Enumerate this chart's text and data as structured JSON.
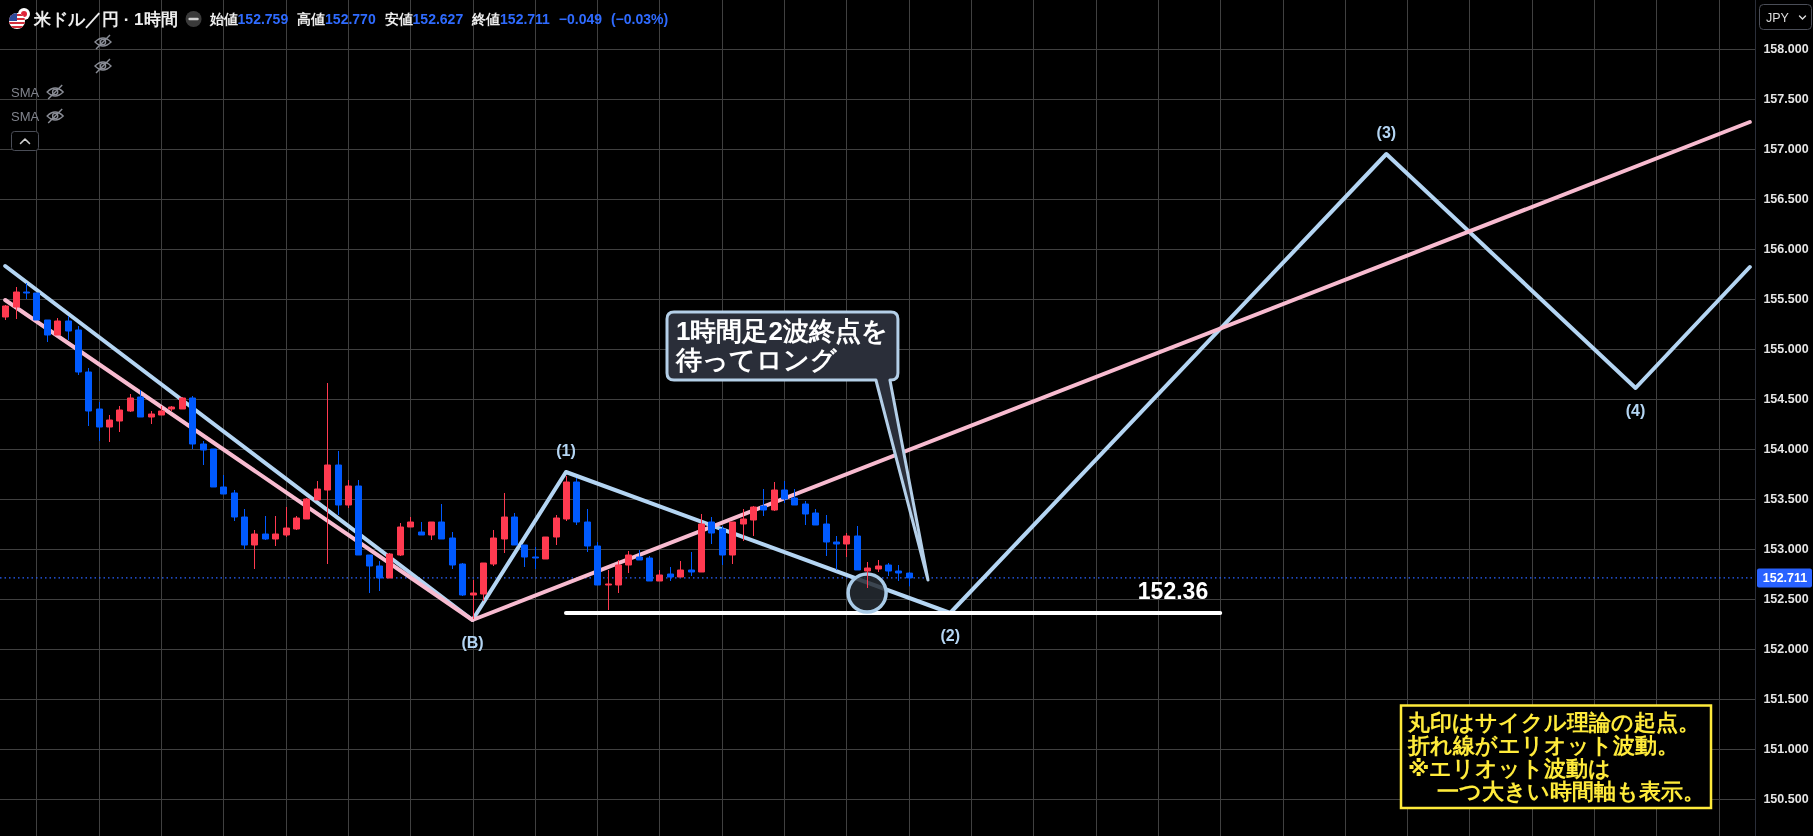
{
  "chart_data": {
    "type": "candlestick",
    "title": "米ドル／円 · 1時間",
    "subtitle": "始値152.759 高値152.770 安値152.627 終値152.711 −0.049 (−0.03%)",
    "categories": [
      null,
      null,
      null,
      null,
      null,
      null,
      null,
      null,
      null,
      null,
      null,
      null,
      null,
      null,
      null,
      null,
      null,
      null,
      null,
      null,
      null,
      null,
      null,
      null,
      null,
      null,
      null,
      null,
      null,
      null,
      null,
      null,
      null,
      null,
      null,
      null,
      null,
      null,
      null,
      null,
      null,
      null,
      null,
      null,
      null,
      null,
      null,
      null,
      null,
      null,
      null,
      null,
      null,
      null,
      null,
      null,
      null,
      null,
      null,
      null,
      null,
      null,
      null,
      null,
      null,
      null,
      null,
      null,
      null,
      null,
      null,
      null,
      null,
      null,
      null,
      null,
      null,
      null,
      null,
      null,
      null,
      null,
      null,
      null,
      null,
      null,
      null,
      null,
      null,
      null,
      null,
      null,
      null,
      null,
      null,
      null,
      null,
      null,
      null,
      null,
      null,
      null,
      null,
      null,
      null,
      null,
      null,
      null,
      null,
      null,
      null,
      null,
      null,
      null,
      null,
      null,
      null,
      null,
      null,
      null,
      null,
      null,
      null,
      null,
      null,
      null,
      null,
      null,
      null,
      null,
      null,
      null,
      null,
      null,
      null,
      null,
      null,
      null,
      null,
      null,
      null,
      null,
      null,
      null,
      null,
      null,
      null,
      null,
      null,
      null,
      null,
      null,
      null,
      null,
      null,
      null,
      null,
      null,
      null,
      null,
      null,
      null,
      null,
      null,
      null,
      null,
      null,
      null,
      null
    ],
    "ohlc": [
      [
        155.32,
        155.44,
        155.29,
        155.43
      ],
      [
        155.42,
        155.62,
        155.3,
        155.57
      ],
      [
        155.57,
        155.66,
        155.5,
        155.56
      ],
      [
        155.56,
        155.56,
        155.29,
        155.29
      ],
      [
        155.29,
        155.29,
        155.07,
        155.14
      ],
      [
        155.14,
        155.31,
        155.14,
        155.28
      ],
      [
        155.28,
        155.33,
        155.09,
        155.18
      ],
      [
        155.19,
        155.23,
        154.74,
        154.77
      ],
      [
        154.77,
        154.81,
        154.23,
        154.38
      ],
      [
        154.4,
        154.47,
        154.08,
        154.22
      ],
      [
        154.22,
        154.34,
        154.07,
        154.29
      ],
      [
        154.28,
        154.43,
        154.17,
        154.39
      ],
      [
        154.38,
        154.55,
        154.37,
        154.51
      ],
      [
        154.52,
        154.59,
        154.32,
        154.32
      ],
      [
        154.32,
        154.38,
        154.25,
        154.35
      ],
      [
        154.34,
        154.43,
        154.34,
        154.38
      ],
      [
        154.4,
        154.43,
        154.38,
        154.42
      ],
      [
        154.4,
        154.52,
        154.4,
        154.51
      ],
      [
        154.51,
        154.53,
        154.0,
        154.05
      ],
      [
        154.05,
        154.08,
        153.84,
        153.99
      ],
      [
        154.0,
        154.0,
        153.62,
        153.62
      ],
      [
        153.62,
        153.74,
        153.55,
        153.55
      ],
      [
        153.56,
        153.59,
        153.28,
        153.32
      ],
      [
        153.32,
        153.4,
        153.0,
        153.04
      ],
      [
        153.04,
        153.19,
        152.8,
        153.15
      ],
      [
        153.15,
        153.33,
        153.09,
        153.1
      ],
      [
        153.1,
        153.33,
        153.03,
        153.15
      ],
      [
        153.14,
        153.42,
        153.12,
        153.21
      ],
      [
        153.2,
        153.33,
        153.19,
        153.31
      ],
      [
        153.3,
        153.51,
        153.3,
        153.5
      ],
      [
        153.49,
        153.68,
        153.49,
        153.6
      ],
      [
        153.59,
        154.66,
        152.85,
        153.84
      ],
      [
        153.84,
        153.98,
        153.34,
        153.44
      ],
      [
        153.44,
        153.69,
        153.41,
        153.63
      ],
      [
        153.63,
        153.69,
        152.94,
        152.94
      ],
      [
        152.94,
        152.94,
        152.56,
        152.83
      ],
      [
        152.83,
        152.88,
        152.58,
        152.71
      ],
      [
        152.71,
        152.96,
        152.71,
        152.95
      ],
      [
        152.94,
        153.26,
        152.93,
        153.22
      ],
      [
        153.22,
        153.32,
        153.22,
        153.27
      ],
      [
        153.17,
        153.27,
        153.14,
        153.14
      ],
      [
        153.14,
        153.27,
        153.09,
        153.27
      ],
      [
        153.27,
        153.45,
        153.1,
        153.1
      ],
      [
        153.11,
        153.17,
        152.8,
        152.84
      ],
      [
        152.85,
        152.86,
        152.53,
        152.54
      ],
      [
        152.54,
        152.69,
        152.3,
        152.56
      ],
      [
        152.55,
        152.86,
        152.48,
        152.86
      ],
      [
        152.85,
        153.19,
        152.83,
        153.11
      ],
      [
        153.1,
        153.56,
        152.96,
        153.32
      ],
      [
        153.32,
        153.36,
        153.04,
        153.04
      ],
      [
        153.04,
        153.04,
        152.82,
        152.92
      ],
      [
        152.92,
        153.02,
        152.8,
        152.91
      ],
      [
        152.9,
        153.12,
        152.9,
        153.12
      ],
      [
        153.12,
        153.34,
        153.04,
        153.31
      ],
      [
        153.3,
        153.73,
        153.28,
        153.67
      ],
      [
        153.67,
        153.71,
        153.24,
        153.27
      ],
      [
        153.27,
        153.4,
        152.97,
        153.03
      ],
      [
        153.03,
        153.07,
        152.64,
        152.64
      ],
      [
        152.64,
        152.79,
        152.39,
        152.65
      ],
      [
        152.64,
        152.89,
        152.56,
        152.84
      ],
      [
        152.84,
        152.98,
        152.76,
        152.94
      ],
      [
        152.92,
        152.99,
        152.89,
        152.89
      ],
      [
        152.91,
        152.93,
        152.68,
        152.68
      ],
      [
        152.68,
        152.79,
        152.68,
        152.74
      ],
      [
        152.75,
        152.82,
        152.68,
        152.72
      ],
      [
        152.72,
        152.88,
        152.72,
        152.79
      ],
      [
        152.79,
        152.97,
        152.73,
        152.77
      ],
      [
        152.77,
        153.35,
        152.77,
        153.25
      ],
      [
        153.27,
        153.32,
        153.05,
        153.16
      ],
      [
        153.2,
        153.23,
        152.84,
        152.94
      ],
      [
        152.94,
        153.27,
        152.85,
        153.27
      ],
      [
        153.25,
        153.4,
        153.08,
        153.3
      ],
      [
        153.29,
        153.43,
        153.13,
        153.42
      ],
      [
        153.43,
        153.6,
        153.33,
        153.39
      ],
      [
        153.39,
        153.67,
        153.38,
        153.59
      ],
      [
        153.59,
        153.68,
        153.46,
        153.5
      ],
      [
        153.51,
        153.6,
        153.44,
        153.44
      ],
      [
        153.45,
        153.48,
        153.24,
        153.35
      ],
      [
        153.36,
        153.4,
        153.24,
        153.24
      ],
      [
        153.25,
        153.34,
        152.93,
        153.07
      ],
      [
        153.07,
        153.13,
        152.79,
        153.05
      ],
      [
        153.05,
        153.16,
        152.92,
        153.13
      ],
      [
        153.13,
        153.23,
        152.79,
        152.79
      ],
      [
        152.78,
        152.87,
        152.61,
        152.81
      ],
      [
        152.8,
        152.89,
        152.77,
        152.83
      ],
      [
        152.84,
        152.86,
        152.73,
        152.78
      ],
      [
        152.78,
        152.84,
        152.68,
        152.76
      ],
      [
        152.759,
        152.77,
        152.627,
        152.711
      ],
      null,
      null,
      null,
      null,
      null,
      null,
      null,
      null,
      null,
      null,
      null,
      null,
      null,
      null,
      null,
      null,
      null,
      null,
      null,
      null,
      null,
      null,
      null,
      null,
      null,
      null,
      null,
      null,
      null,
      null,
      null,
      null,
      null,
      null,
      null,
      null,
      null,
      null,
      null,
      null,
      null,
      null,
      null,
      null,
      null,
      null,
      null,
      null,
      null,
      null,
      null,
      null,
      null,
      null,
      null,
      null,
      null,
      null,
      null,
      null,
      null,
      null,
      null,
      null,
      null,
      null,
      null,
      null,
      null,
      null,
      null,
      null,
      null,
      null,
      null,
      null,
      null,
      null,
      null,
      null,
      null
    ],
    "colors": [
      "#ff3a50",
      "#ff3a50",
      "#005aff",
      "#005aff",
      "#005aff",
      "#ff3a50",
      "#005aff",
      "#005aff",
      "#005aff",
      "#005aff",
      "#ff3a50",
      "#ff3a50",
      "#ff3a50",
      "#005aff",
      "#ff3a50",
      "#ff3a50",
      "#ff3a50",
      "#ff3a50",
      "#005aff",
      "#005aff",
      "#005aff",
      "#005aff",
      "#005aff",
      "#005aff",
      "#ff3a50",
      "#005aff",
      "#ff3a50",
      "#ff3a50",
      "#ff3a50",
      "#ff3a50",
      "#ff3a50",
      "#ff3a50",
      "#005aff",
      "#ff3a50",
      "#005aff",
      "#005aff",
      "#005aff",
      "#ff3a50",
      "#ff3a50",
      "#ff3a50",
      "#005aff",
      "#ff3a50",
      "#005aff",
      "#005aff",
      "#005aff",
      "#ff3a50",
      "#ff3a50",
      "#ff3a50",
      "#ff3a50",
      "#005aff",
      "#005aff",
      "#005aff",
      "#ff3a50",
      "#ff3a50",
      "#ff3a50",
      "#005aff",
      "#005aff",
      "#005aff",
      "#ff3a50",
      "#ff3a50",
      "#ff3a50",
      "#005aff",
      "#005aff",
      "#ff3a50",
      "#005aff",
      "#ff3a50",
      "#005aff",
      "#ff3a50",
      "#005aff",
      "#005aff",
      "#ff3a50",
      "#ff3a50",
      "#ff3a50",
      "#005aff",
      "#ff3a50",
      "#005aff",
      "#005aff",
      "#005aff",
      "#005aff",
      "#005aff",
      "#005aff",
      "#ff3a50",
      "#005aff",
      "#ff3a50",
      "#ff3a50",
      "#005aff",
      "#005aff",
      "#005aff",
      null,
      null,
      null,
      null,
      null,
      null,
      null,
      null,
      null,
      null,
      null,
      null,
      null,
      null,
      null,
      null,
      null,
      null,
      null,
      null,
      null,
      null,
      null,
      null,
      null,
      null,
      null,
      null,
      null,
      null,
      null,
      null,
      null,
      null,
      null,
      null,
      null,
      null,
      null,
      null,
      null,
      null,
      null,
      null,
      null,
      null,
      null,
      null,
      null,
      null,
      null,
      null,
      null,
      null,
      null,
      null,
      null,
      null,
      null,
      null,
      null,
      null,
      null,
      null,
      null,
      null,
      null,
      null,
      null,
      null,
      null,
      null,
      null,
      null,
      null,
      null,
      null,
      null,
      null,
      null,
      null
    ],
    "series": [
      {
        "type": "line",
        "color": "#b4d5f3",
        "values": [
          155.83,
          null,
          null,
          null,
          null,
          null,
          null,
          null,
          null,
          null,
          null,
          null,
          null,
          null,
          null,
          null,
          null,
          null,
          null,
          null,
          null,
          null,
          null,
          null,
          null,
          null,
          null,
          null,
          null,
          null,
          null,
          null,
          null,
          null,
          null,
          null,
          null,
          null,
          null,
          null,
          null,
          null,
          null,
          null,
          null,
          152.29,
          null,
          null,
          null,
          null,
          null,
          null,
          null,
          null,
          153.77,
          null,
          null,
          null,
          null,
          null,
          null,
          null,
          null,
          null,
          null,
          null,
          null,
          null,
          null,
          null,
          null,
          null,
          null,
          null,
          null,
          null,
          null,
          null,
          null,
          null,
          null,
          null,
          null,
          null,
          null,
          null,
          null,
          null,
          null,
          null,
          null,
          152.36,
          null,
          null,
          null,
          null,
          null,
          null,
          null,
          null,
          null,
          null,
          null,
          null,
          null,
          null,
          null,
          null,
          null,
          null,
          null,
          null,
          null,
          null,
          null,
          null,
          null,
          null,
          null,
          null,
          null,
          null,
          null,
          null,
          null,
          null,
          null,
          null,
          null,
          null,
          null,
          null,
          null,
          156.95,
          null,
          null,
          null,
          null,
          null,
          null,
          null,
          null,
          null,
          null,
          null,
          null,
          null,
          null,
          null,
          null,
          null,
          null,
          null,
          null,
          null,
          null,
          null,
          154.61,
          null,
          null,
          null,
          null,
          null,
          null,
          null,
          null,
          null,
          null,
          155.82
        ]
      },
      {
        "type": "line",
        "color": "#f8bbd0",
        "values": [
          155.49,
          null,
          null,
          null,
          null,
          null,
          null,
          null,
          null,
          null,
          null,
          null,
          null,
          null,
          null,
          null,
          null,
          null,
          null,
          null,
          null,
          null,
          null,
          null,
          null,
          null,
          null,
          null,
          null,
          null,
          null,
          null,
          null,
          null,
          null,
          null,
          null,
          null,
          null,
          null,
          null,
          null,
          null,
          null,
          null,
          152.29,
          null,
          null,
          null,
          null,
          null,
          null,
          null,
          null,
          null,
          null,
          null,
          null,
          null,
          null,
          null,
          null,
          null,
          null,
          null,
          null,
          null,
          null,
          null,
          null,
          null,
          null,
          null,
          null,
          null,
          null,
          null,
          null,
          null,
          null,
          null,
          null,
          null,
          null,
          null,
          null,
          null,
          null,
          null,
          null,
          null,
          null,
          null,
          null,
          null,
          null,
          null,
          null,
          null,
          null,
          null,
          null,
          null,
          null,
          null,
          null,
          null,
          null,
          null,
          null,
          null,
          null,
          null,
          null,
          null,
          null,
          null,
          null,
          null,
          null,
          null,
          null,
          null,
          null,
          null,
          null,
          null,
          null,
          null,
          null,
          null,
          null,
          null,
          null,
          null,
          null,
          null,
          null,
          null,
          null,
          null,
          null,
          null,
          null,
          null,
          null,
          null,
          null,
          null,
          null,
          null,
          null,
          null,
          null,
          null,
          null,
          null,
          null,
          null,
          null,
          null,
          null,
          null,
          null,
          null,
          null,
          null,
          null,
          157.27
        ]
      },
      {
        "type": "line",
        "color": "#ffffff",
        "values": [
          null,
          null,
          null,
          null,
          null,
          null,
          null,
          null,
          null,
          null,
          null,
          null,
          null,
          null,
          null,
          null,
          null,
          null,
          null,
          null,
          null,
          null,
          null,
          null,
          null,
          null,
          null,
          null,
          null,
          null,
          null,
          null,
          null,
          null,
          null,
          null,
          null,
          null,
          null,
          null,
          null,
          null,
          null,
          null,
          null,
          null,
          null,
          null,
          null,
          null,
          null,
          null,
          null,
          null,
          152.36,
          null,
          null,
          null,
          null,
          null,
          null,
          null,
          null,
          null,
          null,
          null,
          null,
          null,
          null,
          null,
          null,
          null,
          null,
          null,
          null,
          null,
          null,
          null,
          null,
          null,
          null,
          null,
          null,
          null,
          null,
          null,
          null,
          null,
          null,
          null,
          null,
          null,
          null,
          null,
          null,
          null,
          null,
          null,
          null,
          null,
          null,
          null,
          null,
          null,
          null,
          null,
          null,
          null,
          null,
          null,
          null,
          null,
          null,
          null,
          null,
          null,
          null,
          152.36,
          null,
          null,
          null,
          null,
          null,
          null,
          null,
          null,
          null,
          null,
          null,
          null,
          null,
          null,
          null,
          null,
          null,
          null,
          null,
          null,
          null,
          null,
          null,
          null,
          null,
          null,
          null,
          null,
          null,
          null,
          null,
          null,
          null,
          null,
          null,
          null,
          null,
          null,
          null,
          null,
          null,
          null,
          null,
          null,
          null,
          null,
          null,
          null,
          null,
          null,
          null
        ],
        "value_labels": [
          null,
          null,
          null,
          null,
          null,
          null,
          null,
          null,
          null,
          null,
          null,
          null,
          null,
          null,
          null,
          null,
          null,
          null,
          null,
          null,
          null,
          null,
          null,
          null,
          null,
          null,
          null,
          null,
          null,
          null,
          null,
          null,
          null,
          null,
          null,
          null,
          null,
          null,
          null,
          null,
          null,
          null,
          null,
          null,
          null,
          null,
          null,
          null,
          null,
          null,
          null,
          null,
          null,
          null,
          null,
          null,
          null,
          null,
          null,
          null,
          null,
          null,
          null,
          null,
          null,
          null,
          null,
          null,
          null,
          null,
          null,
          null,
          null,
          null,
          null,
          null,
          null,
          null,
          null,
          null,
          null,
          null,
          null,
          null,
          null,
          null,
          null,
          null,
          null,
          null,
          null,
          null,
          null,
          null,
          null,
          null,
          null,
          null,
          null,
          null,
          null,
          null,
          null,
          null,
          null,
          null,
          null,
          null,
          null,
          null,
          null,
          null,
          null,
          null,
          null,
          null,
          null,
          "152.36",
          null,
          null,
          null,
          null,
          null,
          null,
          null,
          null,
          null,
          null,
          null,
          null,
          null,
          null,
          null,
          null,
          null,
          null,
          null,
          null,
          null,
          null,
          null,
          null,
          null,
          null,
          null,
          null,
          null,
          null,
          null,
          null,
          null,
          null,
          null,
          null,
          null,
          null,
          null,
          null,
          null,
          null,
          null,
          null,
          null,
          null,
          null,
          null,
          null,
          null,
          null
        ]
      },
      {
        "type": "scatter",
        "color": "#a9cbe8",
        "marker": "circle",
        "values": [
          null,
          null,
          null,
          null,
          null,
          null,
          null,
          null,
          null,
          null,
          null,
          null,
          null,
          null,
          null,
          null,
          null,
          null,
          null,
          null,
          null,
          null,
          null,
          null,
          null,
          null,
          null,
          null,
          null,
          null,
          null,
          null,
          null,
          null,
          null,
          null,
          null,
          null,
          null,
          null,
          null,
          null,
          null,
          null,
          null,
          null,
          null,
          null,
          null,
          null,
          null,
          null,
          null,
          null,
          null,
          null,
          null,
          null,
          null,
          null,
          null,
          null,
          null,
          null,
          null,
          null,
          null,
          null,
          null,
          null,
          null,
          null,
          null,
          null,
          null,
          null,
          null,
          null,
          null,
          null,
          null,
          null,
          null,
          152.56,
          null,
          null,
          null,
          null,
          null,
          null,
          null,
          null,
          null,
          null,
          null,
          null,
          null,
          null,
          null,
          null,
          null,
          null,
          null,
          null,
          null,
          null,
          null,
          null,
          null,
          null,
          null,
          null,
          null,
          null,
          null,
          null,
          null,
          null,
          null,
          null,
          null,
          null,
          null,
          null,
          null,
          null,
          null,
          null,
          null,
          null,
          null,
          null,
          null,
          null,
          null,
          null,
          null,
          null,
          null,
          null,
          null,
          null,
          null,
          null,
          null,
          null,
          null,
          null,
          null,
          null,
          null,
          null,
          null,
          null,
          null,
          null,
          null,
          null,
          null,
          null,
          null,
          null,
          null,
          null,
          null,
          null,
          null,
          null,
          null
        ]
      }
    ],
    "ylim": [
      150.13,
      158.49
    ],
    "yticks": [
      {
        "value": 150.5,
        "label": "150.500"
      },
      {
        "value": 151,
        "label": "151.000"
      },
      {
        "value": 151.5,
        "label": "151.500"
      },
      {
        "value": 152,
        "label": "152.000"
      },
      {
        "value": 152.5,
        "label": "152.500"
      },
      {
        "value": 153,
        "label": "153.000"
      },
      {
        "value": 153.5,
        "label": "153.500"
      },
      {
        "value": 154,
        "label": "154.000"
      },
      {
        "value": 154.5,
        "label": "154.500"
      },
      {
        "value": 155,
        "label": "155.000"
      },
      {
        "value": 155.5,
        "label": "155.500"
      },
      {
        "value": 156,
        "label": "156.000"
      },
      {
        "value": 156.5,
        "label": "156.500"
      },
      {
        "value": 157,
        "label": "157.000"
      },
      {
        "value": 157.5,
        "label": "157.500"
      },
      {
        "value": 158,
        "label": "158.000"
      }
    ],
    "ref_lines": [
      {
        "axis": "y",
        "value": 152.711,
        "label": "152.711",
        "color": "#2962ff",
        "line_style": "dotted"
      }
    ],
    "annotations": [
      "JPY",
      "SMA",
      "SMA",
      "1時間足2波終点を",
      "待ってロング",
      "丸印はサイクル理論の起点。",
      "折れ線がエリオット波動。",
      "※エリオット波動は",
      "一つ大きい時間軸も表示。",
      {
        "text": "(B)",
        "y": 152.29
      },
      {
        "text": "(1)",
        "y": 153.77
      },
      {
        "text": "(2)",
        "y": 152.36
      },
      {
        "text": "(3)",
        "y": 156.95
      },
      {
        "text": "(4)",
        "y": 154.61
      }
    ],
    "tick_labels": "y",
    "grid": true
  }
}
